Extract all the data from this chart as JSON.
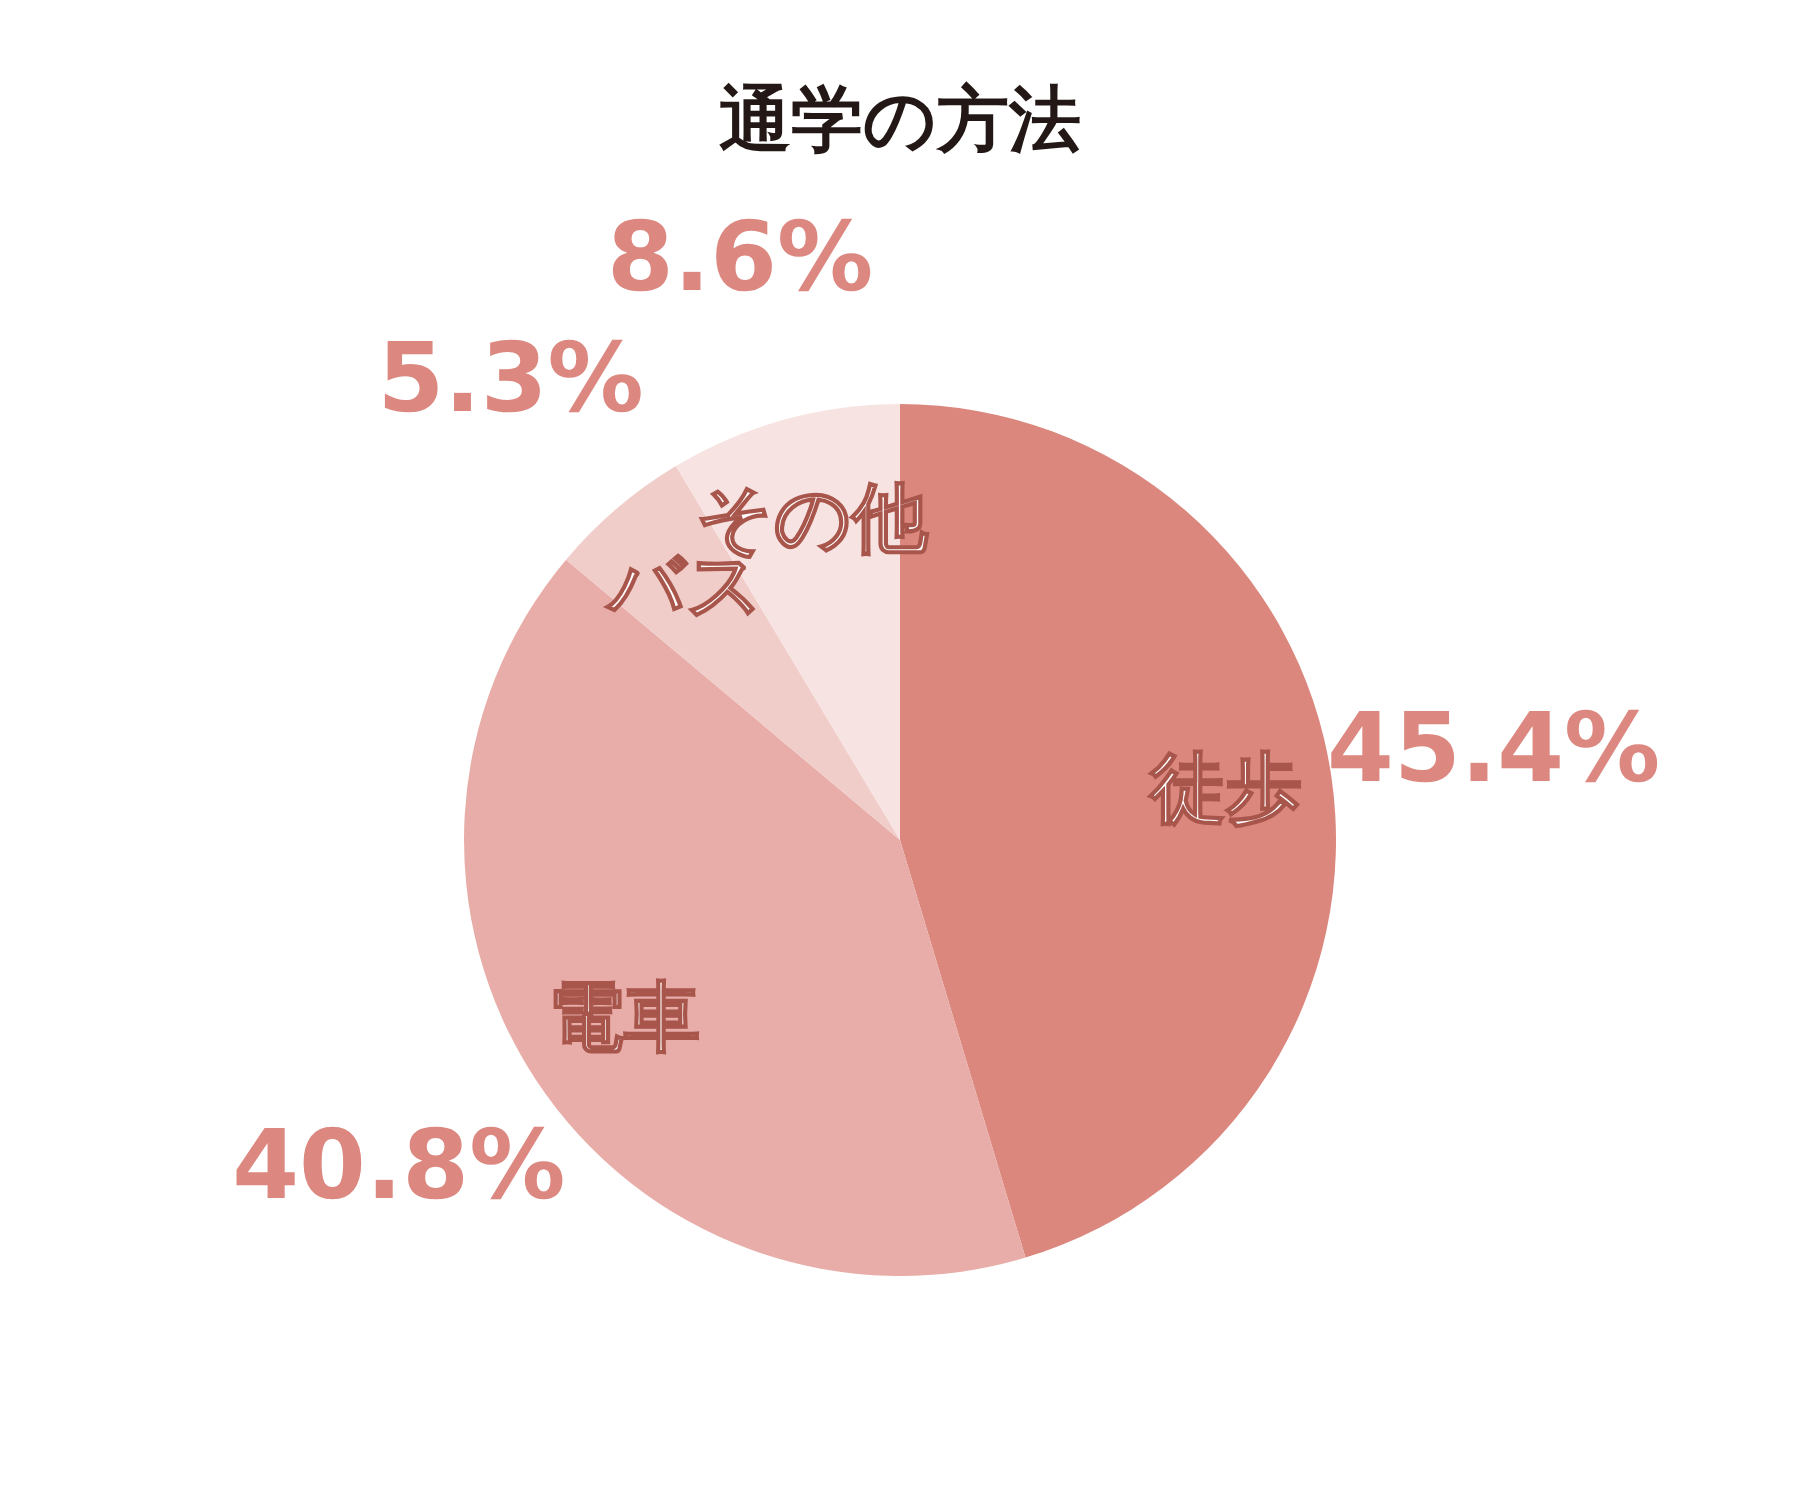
{
  "chart_data": {
    "type": "pie",
    "title": "通学の方法",
    "categories": [
      "徒歩",
      "電車",
      "バス",
      "その他"
    ],
    "values": [
      45.4,
      40.8,
      5.3,
      8.6
    ],
    "colors": [
      "#db877e",
      "#e8ada8",
      "#f0cdc9",
      "#f7e4e2"
    ],
    "value_labels": [
      "45.4%",
      "40.8%",
      "5.3%",
      "8.6%"
    ],
    "legend": false
  }
}
